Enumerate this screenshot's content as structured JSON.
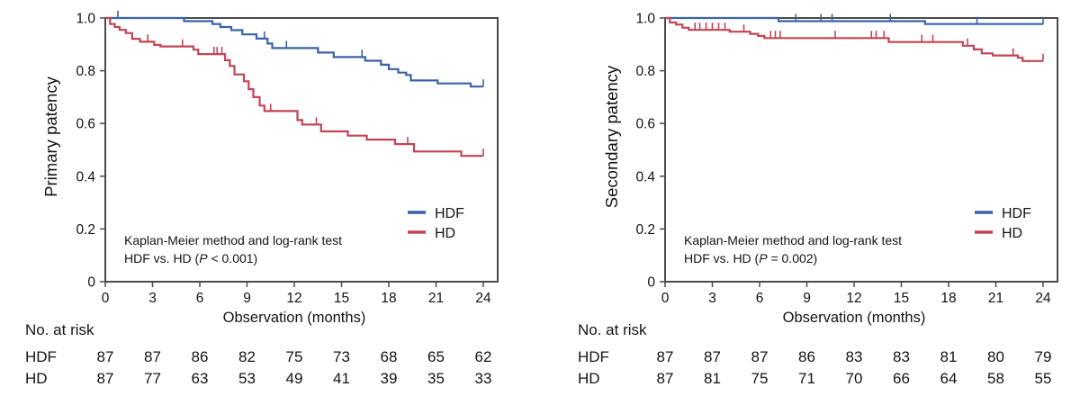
{
  "chart_data": [
    {
      "type": "line",
      "subtype": "kaplan-meier-step",
      "ylabel": "Primary patency",
      "xlabel": "Observation (months)",
      "xlim": [
        0,
        24
      ],
      "ylim": [
        0,
        1.0
      ],
      "grid": false,
      "legend_position": "inside-right",
      "y_ticks": [
        "1.0",
        "0.8",
        "0.6",
        "0.4",
        "0.2",
        "0"
      ],
      "x_ticks": [
        "0",
        "3",
        "6",
        "9",
        "12",
        "15",
        "18",
        "21",
        "24"
      ],
      "x_tick_months": [
        0,
        3,
        6,
        9,
        12,
        15,
        18,
        21,
        24
      ],
      "annotation": {
        "line1": "Kaplan-Meier method and log-rank test",
        "line2_pre": "HDF vs. HD (",
        "line2_pvar": "P",
        "line2_post": " < 0.001)"
      },
      "series": [
        {
          "name": "HDF",
          "color": "#3a62a6",
          "x": [
            0,
            5.0,
            6.8,
            7.3,
            8.0,
            8.7,
            9.6,
            10.3,
            10.6,
            13.5,
            14.5,
            16.5,
            17.5,
            18.0,
            18.6,
            19.1,
            19.4,
            21.1,
            23.2,
            24
          ],
          "y": [
            1.0,
            0.988,
            0.977,
            0.966,
            0.954,
            0.938,
            0.922,
            0.903,
            0.886,
            0.869,
            0.852,
            0.838,
            0.823,
            0.806,
            0.793,
            0.784,
            0.763,
            0.752,
            0.74,
            0.74
          ],
          "censor_x": [
            0.8,
            10.1,
            11.5,
            16.3,
            24
          ]
        },
        {
          "name": "HD",
          "color": "#c24455",
          "x": [
            0,
            0.3,
            0.6,
            0.9,
            1.3,
            1.7,
            2.2,
            3.1,
            3.5,
            5.6,
            5.9,
            7.6,
            7.9,
            8.2,
            8.8,
            9.1,
            9.4,
            9.8,
            10.1,
            12.2,
            12.5,
            13.7,
            15.4,
            16.6,
            18.4,
            19.6,
            22.6,
            24
          ],
          "y": [
            1.0,
            0.977,
            0.966,
            0.955,
            0.943,
            0.921,
            0.91,
            0.898,
            0.892,
            0.88,
            0.863,
            0.84,
            0.818,
            0.786,
            0.76,
            0.73,
            0.7,
            0.668,
            0.647,
            0.613,
            0.596,
            0.57,
            0.554,
            0.539,
            0.522,
            0.494,
            0.477,
            0.477
          ],
          "censor_x": [
            2.7,
            4.9,
            6.9,
            7.1,
            7.4,
            10.5,
            13.4,
            19.2,
            24
          ]
        }
      ],
      "risk_table": {
        "title": "No. at risk",
        "months": [
          0,
          3,
          6,
          9,
          12,
          15,
          18,
          21,
          24
        ],
        "rows": [
          {
            "label": "HDF",
            "values": [
              87,
              87,
              86,
              82,
              75,
              73,
              68,
              65,
              62
            ]
          },
          {
            "label": "HD",
            "values": [
              87,
              77,
              63,
              53,
              49,
              41,
              39,
              35,
              33
            ]
          }
        ]
      }
    },
    {
      "type": "line",
      "subtype": "kaplan-meier-step",
      "ylabel": "Secondary patency",
      "xlabel": "Observation (months)",
      "xlim": [
        0,
        24
      ],
      "ylim": [
        0,
        1.0
      ],
      "grid": false,
      "legend_position": "inside-right",
      "y_ticks": [
        "1.0",
        "0.8",
        "0.6",
        "0.4",
        "0.2",
        "0"
      ],
      "x_ticks": [
        "0",
        "3",
        "6",
        "9",
        "12",
        "15",
        "18",
        "21",
        "24"
      ],
      "x_tick_months": [
        0,
        3,
        6,
        9,
        12,
        15,
        18,
        21,
        24
      ],
      "annotation": {
        "line1": "Kaplan-Meier method and log-rank test",
        "line2_pre": "HDF vs. HD (",
        "line2_pvar": "P",
        "line2_post": " = 0.002)"
      },
      "series": [
        {
          "name": "HDF",
          "color": "#3a62a6",
          "x": [
            0,
            7.2,
            16.5,
            24
          ],
          "y": [
            1.0,
            0.988,
            0.977,
            0.977
          ],
          "censor_x": [
            8.3,
            9.9,
            10.6,
            14.3,
            19.8,
            24
          ]
        },
        {
          "name": "HD",
          "color": "#c24455",
          "x": [
            0,
            0.3,
            0.7,
            1.1,
            1.5,
            4.1,
            5.4,
            5.9,
            6.3,
            14.2,
            18.9,
            19.6,
            20.1,
            20.8,
            22.4,
            22.7,
            24
          ],
          "y": [
            1.0,
            0.983,
            0.975,
            0.963,
            0.955,
            0.948,
            0.94,
            0.932,
            0.924,
            0.909,
            0.895,
            0.881,
            0.866,
            0.858,
            0.849,
            0.837,
            0.837
          ],
          "censor_x": [
            1.9,
            2.2,
            2.6,
            3.0,
            3.4,
            3.8,
            5.0,
            6.7,
            7.0,
            7.3,
            10.8,
            13.1,
            13.4,
            13.9,
            16.3,
            17.0,
            19.2,
            22.1,
            24
          ]
        }
      ],
      "risk_table": {
        "title": "No. at risk",
        "months": [
          0,
          3,
          6,
          9,
          12,
          15,
          18,
          21,
          24
        ],
        "rows": [
          {
            "label": "HDF",
            "values": [
              87,
              87,
              87,
              86,
              83,
              83,
              81,
              80,
              79
            ]
          },
          {
            "label": "HD",
            "values": [
              87,
              81,
              75,
              71,
              70,
              66,
              64,
              58,
              55
            ]
          }
        ]
      }
    }
  ]
}
